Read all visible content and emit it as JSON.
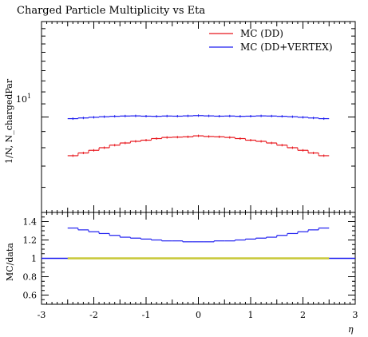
{
  "chart_data": {
    "type": "line",
    "title": "Charged Particle Multiplicity vs Eta",
    "xlabel": "η",
    "ylabel_main": "1/N, N_chargedPar",
    "ylabel_ratio": "MC/data",
    "xlim": [
      -3,
      3
    ],
    "main": {
      "yscale": "log",
      "ylim": [
        5,
        20
      ],
      "yticks": [
        10
      ],
      "ytick_labels": [
        {
          "base": "10",
          "exp": "1"
        }
      ]
    },
    "ratio": {
      "ylim": [
        0.5,
        1.5
      ],
      "yticks": [
        0.6,
        0.8,
        1,
        1.2,
        1.4
      ],
      "ytick_labels": [
        "0.6",
        "0.8",
        "1",
        "1.2",
        "1.4"
      ],
      "reference_value": 1
    },
    "xticks": [
      -3,
      -2,
      -1,
      0,
      1,
      2,
      3
    ],
    "xtick_labels": [
      "-3",
      "-2",
      "-1",
      "0",
      "1",
      "2",
      "3"
    ],
    "legend_position": "top-right",
    "bin_edges": [
      -2.5,
      -2.3,
      -2.1,
      -1.9,
      -1.7,
      -1.5,
      -1.3,
      -1.1,
      -0.9,
      -0.7,
      -0.5,
      -0.3,
      -0.1,
      0.1,
      0.3,
      0.5,
      0.7,
      0.9,
      1.1,
      1.3,
      1.5,
      1.7,
      1.9,
      2.1,
      2.3,
      2.5
    ],
    "series": [
      {
        "name": "MC (DD)",
        "color": "#e8161c",
        "values": [
          7.55,
          7.7,
          7.85,
          8.0,
          8.15,
          8.28,
          8.38,
          8.45,
          8.55,
          8.62,
          8.64,
          8.66,
          8.72,
          8.68,
          8.66,
          8.62,
          8.55,
          8.45,
          8.38,
          8.28,
          8.15,
          8.0,
          7.85,
          7.7,
          7.55
        ]
      },
      {
        "name": "MC (DD+VERTEX)",
        "color": "#1d1df0",
        "values": [
          9.88,
          9.93,
          9.98,
          10.02,
          10.05,
          10.07,
          10.08,
          10.06,
          10.05,
          10.07,
          10.06,
          10.08,
          10.1,
          10.08,
          10.06,
          10.07,
          10.05,
          10.06,
          10.08,
          10.07,
          10.05,
          10.02,
          9.98,
          9.93,
          9.88
        ]
      }
    ],
    "ratio_series": [
      {
        "name": "MC (DD+VERTEX)",
        "color": "#1d1df0",
        "values": [
          1.33,
          1.31,
          1.29,
          1.27,
          1.25,
          1.23,
          1.22,
          1.21,
          1.2,
          1.19,
          1.19,
          1.18,
          1.18,
          1.18,
          1.19,
          1.19,
          1.2,
          1.21,
          1.22,
          1.23,
          1.25,
          1.27,
          1.29,
          1.31,
          1.33
        ]
      }
    ],
    "ratio_band": {
      "color": "#c8c838",
      "x": [
        -2.5,
        2.5
      ],
      "value": 1
    }
  }
}
